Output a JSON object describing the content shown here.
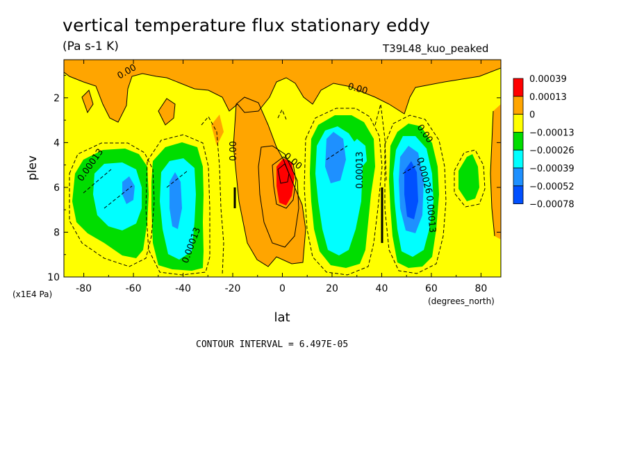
{
  "chart_data": {
    "type": "heatmap",
    "title": "vertical temperature flux stationary eddy",
    "units": "(Pa s-1 K)",
    "run_label": "T39L48_kuo_peaked",
    "xlabel": "lat",
    "ylabel": "plev",
    "x_unit_label": "(degrees_north)",
    "y_unit_label": "(x1E4 Pa)",
    "x_ticks": [
      "-80",
      "-60",
      "-40",
      "-20",
      "0",
      "20",
      "40",
      "60",
      "80"
    ],
    "y_ticks": [
      "2",
      "4",
      "6",
      "8",
      "10"
    ],
    "xlim": [
      -88,
      88
    ],
    "ylim": [
      10,
      0.3
    ],
    "contour_interval_text": "CONTOUR INTERVAL = 6.497E-05",
    "colorbar": {
      "levels": [
        "0.00039",
        "0.00013",
        "0",
        "−0.00013",
        "−0.00026",
        "−0.00039",
        "−0.00052",
        "−0.00078"
      ],
      "colors": [
        "#ff0000",
        "#ffa500",
        "#ffff00",
        "#00dd00",
        "#00ffff",
        "#1e90ff",
        "#0050ff"
      ]
    },
    "contour_labels": [
      "0.00",
      "0.00",
      "0.00",
      "0.00",
      "0.00",
      "0.00013",
      "0.00013",
      "0.00013",
      "0.00026",
      "0.00013"
    ],
    "features": [
      {
        "lat": -62,
        "plev": 6.2,
        "value": -0.00039,
        "note": "negative maximum"
      },
      {
        "lat": -44,
        "plev": 6.5,
        "value": -0.00039,
        "note": "negative maximum"
      },
      {
        "lat": 0,
        "plev": 5.6,
        "value": 0.00039,
        "note": "positive maximum"
      },
      {
        "lat": 22,
        "plev": 5.2,
        "value": -0.00052,
        "note": "negative maximum"
      },
      {
        "lat": 48,
        "plev": 6.2,
        "value": -0.00078,
        "note": "strongest negative"
      },
      {
        "lat": 74,
        "plev": 6.0,
        "value": -0.00026,
        "note": "negative region"
      }
    ]
  }
}
